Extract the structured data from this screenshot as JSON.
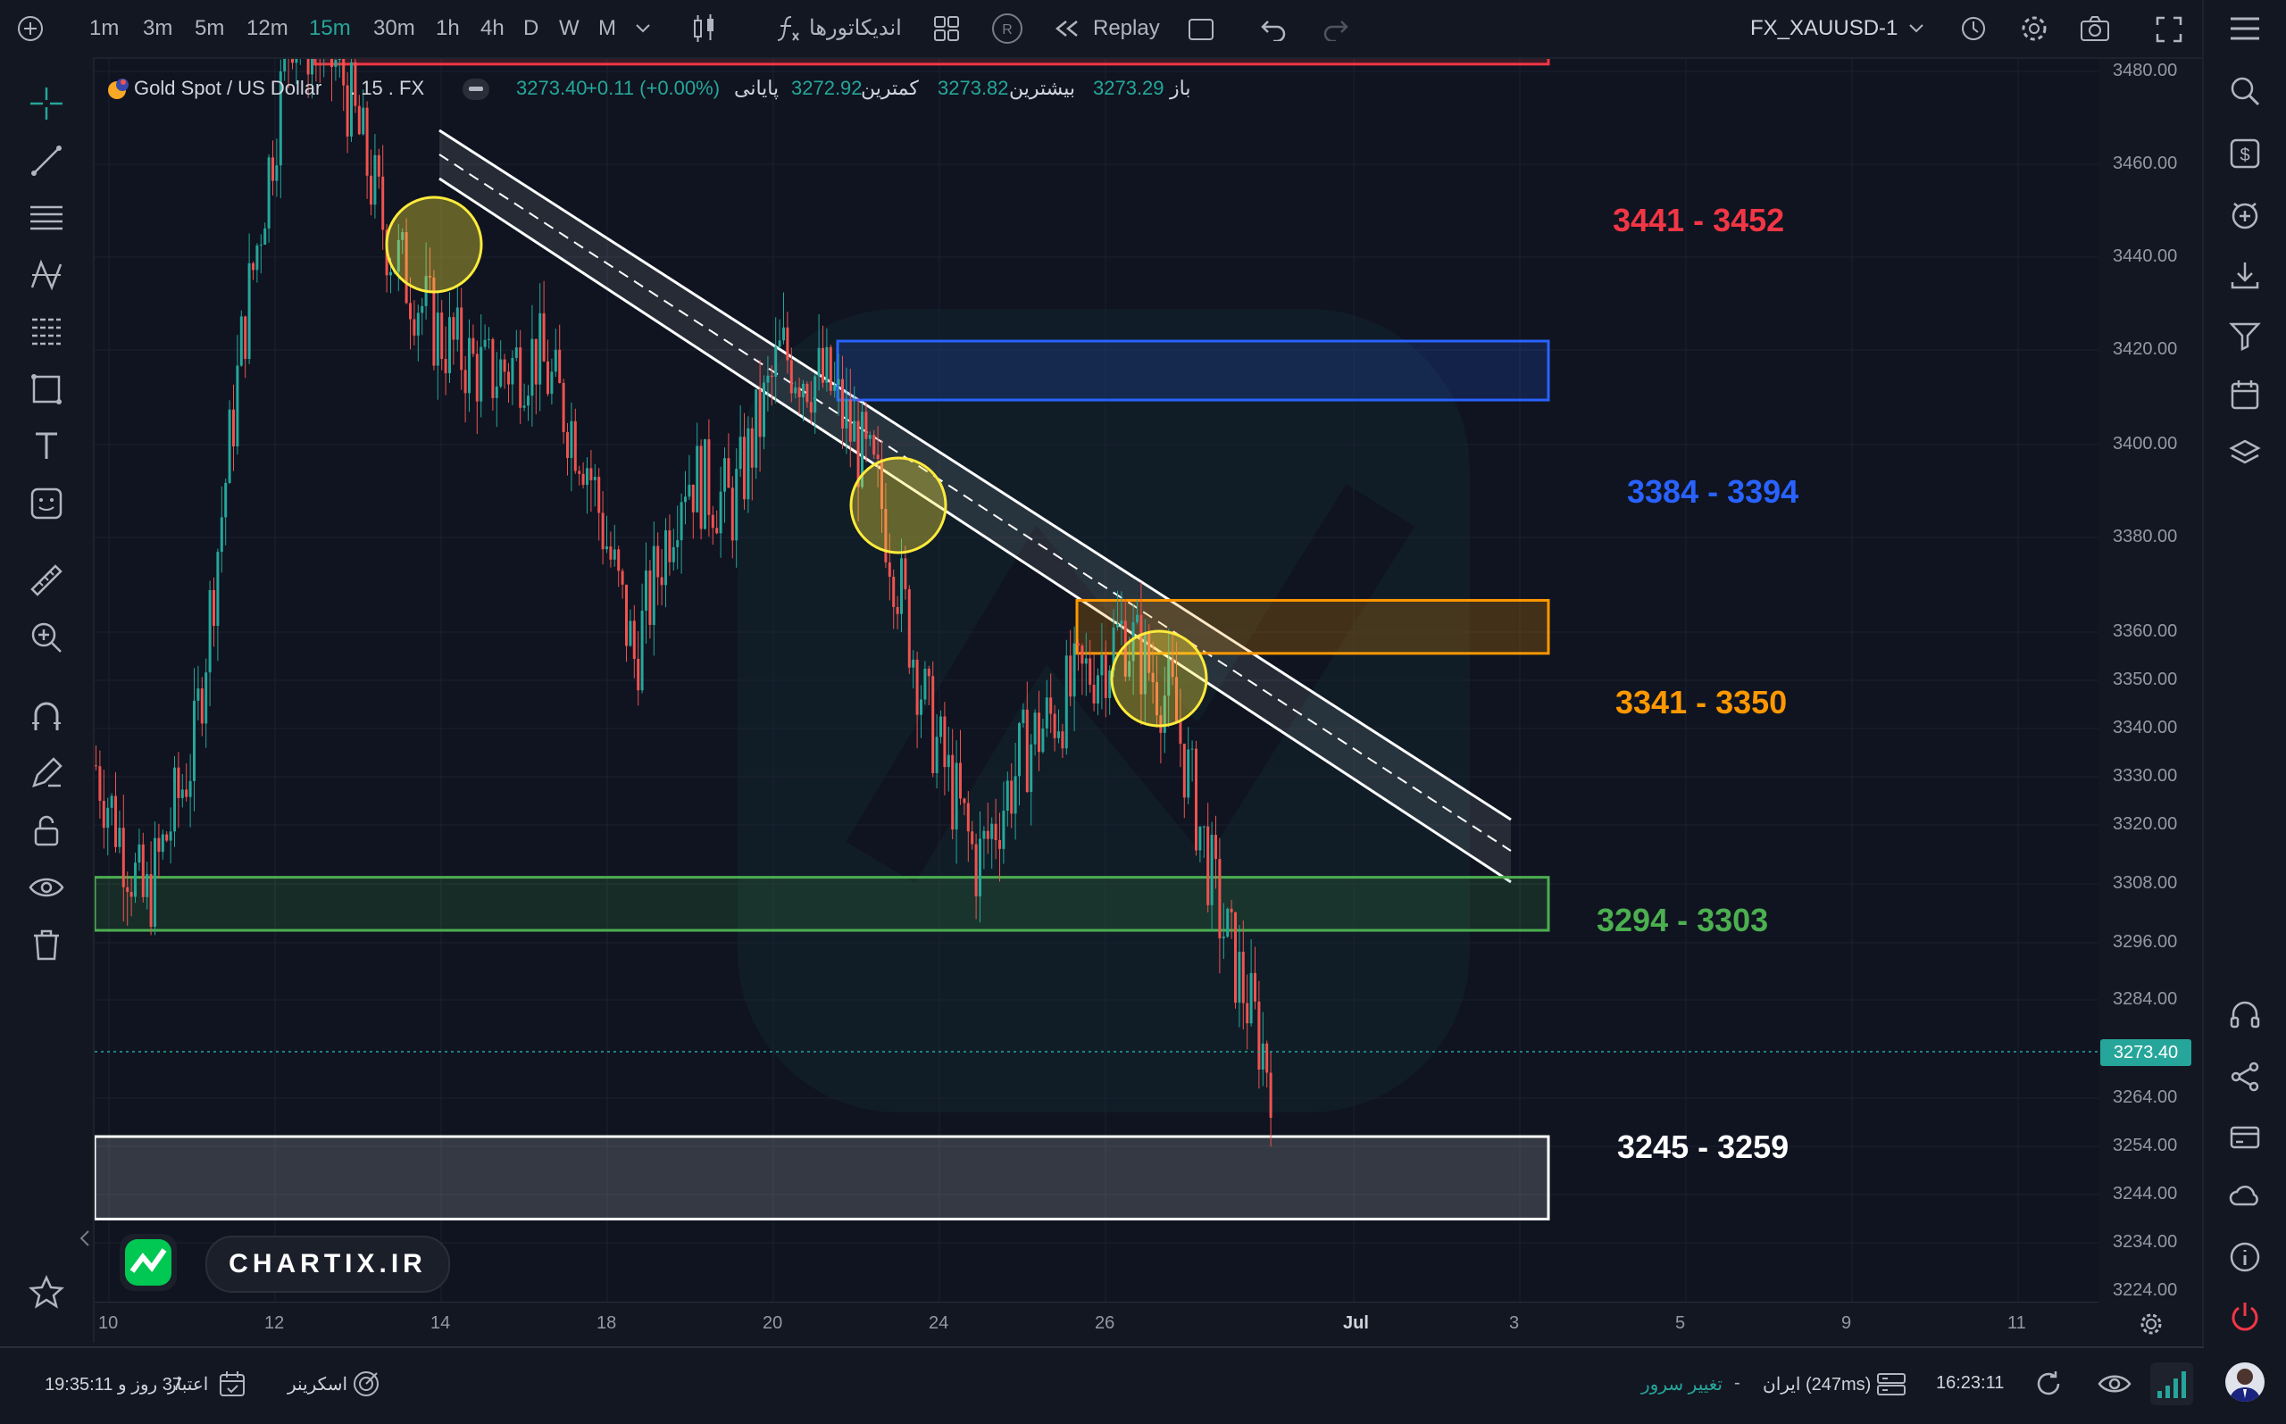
{
  "toolbar": {
    "timeframes": [
      "1m",
      "3m",
      "5m",
      "12m",
      "15m",
      "30m",
      "1h",
      "4h",
      "D",
      "W",
      "M"
    ],
    "active_timeframe": "15m",
    "indicators_label": "اندیکاتورها",
    "replay_label": "Replay",
    "replay_badge": "R",
    "symbol_selector": "FX_XAUUSD-1"
  },
  "legend": {
    "symbol_name": "Gold Spot / US Dollar",
    "interval_exchange": ". 15 . FX",
    "open_label": "باز",
    "open_value": "3273.29",
    "high_label": "بیشترین",
    "high_value": "3273.82",
    "low_label": "کمترین",
    "low_value": "3272.92",
    "close_label": "پایانی",
    "close_value": "3273.40",
    "change_value": "+0.11 (+0.00%)"
  },
  "zones": [
    {
      "label": "3441 - 3452",
      "color": "#f23645"
    },
    {
      "label": "3384 - 3394",
      "color": "#2962ff"
    },
    {
      "label": "3341 - 3350",
      "color": "#ff9800"
    },
    {
      "label": "3294 - 3303",
      "color": "#4caf50"
    },
    {
      "label": "3245 - 3259",
      "color": "#ffffff"
    }
  ],
  "price_axis": {
    "ticks": [
      "3480.00",
      "3460.00",
      "3440.00",
      "3420.00",
      "3400.00",
      "3380.00",
      "3360.00",
      "3350.00",
      "3340.00",
      "3330.00",
      "3320.00",
      "3308.00",
      "3296.00",
      "3284.00",
      "3264.00",
      "3254.00",
      "3244.00",
      "3234.00",
      "3224.00"
    ],
    "current_price": "3273.40",
    "current_price_color": "#26a69a"
  },
  "time_axis": {
    "ticks": [
      "10",
      "12",
      "14",
      "18",
      "20",
      "24",
      "26",
      "Jul",
      "3",
      "5",
      "9",
      "11"
    ]
  },
  "watermark": {
    "text": "CHARTIX.IR"
  },
  "bottom": {
    "subscription_label": "اعتبار",
    "subscription_value": "37 روز و 19:35:11",
    "screener_label": "اسکرینر",
    "server_change": "تغییر سرور",
    "separator": "-",
    "server_info": "ایران (247ms)",
    "clock": "16:23:11"
  },
  "colors": {
    "background": "#0f1420",
    "accent": "#26a69a",
    "up_candle": "#26a69a",
    "down_candle": "#ef5350"
  },
  "chart_data": {
    "type": "candlestick",
    "series": [
      {
        "name": "Gold Spot / US Dollar",
        "x": [
          "10",
          "11",
          "12",
          "13",
          "14",
          "14",
          "15",
          "16",
          "17",
          "18",
          "19",
          "20",
          "21",
          "22",
          "23",
          "23",
          "24",
          "24",
          "25",
          "25",
          "26",
          "26",
          "27",
          "27",
          "27"
        ],
        "values": [
          3322,
          3298,
          3325,
          3395,
          3448,
          3440,
          3410,
          3395,
          3388,
          3392,
          3375,
          3340,
          3372,
          3366,
          3392,
          3386,
          3368,
          3330,
          3305,
          3325,
          3335,
          3345,
          3332,
          3295,
          3270
        ]
      }
    ],
    "ylim": [
      3224,
      3480
    ],
    "annotations": [
      {
        "type": "zone",
        "from": 3441,
        "to": 3452,
        "label": "3441 - 3452"
      },
      {
        "type": "zone",
        "from": 3384,
        "to": 3394,
        "label": "3384 - 3394"
      },
      {
        "type": "zone",
        "from": 3341,
        "to": 3350,
        "label": "3341 - 3350"
      },
      {
        "type": "zone",
        "from": 3294,
        "to": 3303,
        "label": "3294 - 3303"
      },
      {
        "type": "zone",
        "from": 3245,
        "to": 3259,
        "label": "3245 - 3259"
      },
      {
        "type": "channel",
        "label": "descending channel"
      }
    ]
  }
}
